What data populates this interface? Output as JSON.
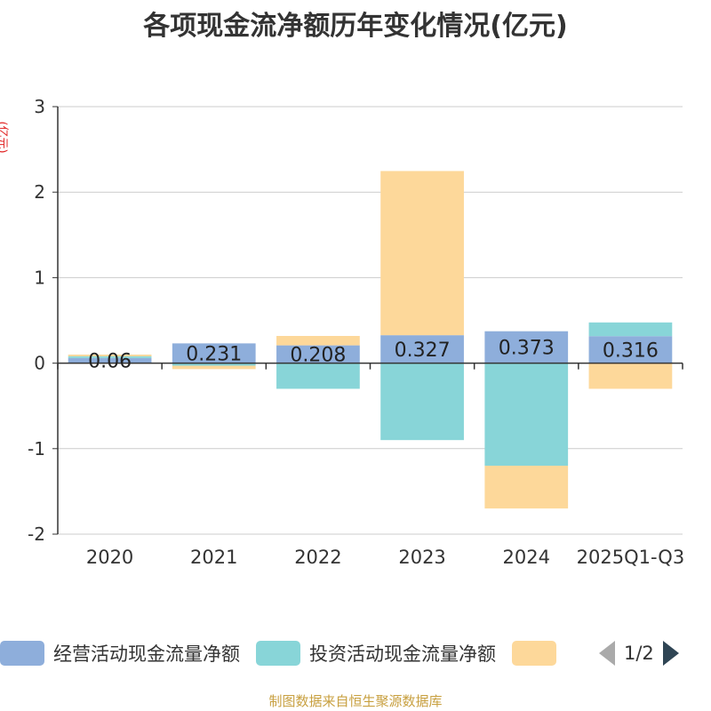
{
  "chart_data": {
    "type": "bar",
    "stacked": true,
    "title": "各项现金流净额历年变化情况(亿元)",
    "ylabel": "(亿元)",
    "ylim": [
      -2,
      3
    ],
    "yticks": [
      -2,
      -1,
      0,
      1,
      2,
      3
    ],
    "grid": true,
    "categories": [
      "2020",
      "2021",
      "2022",
      "2023",
      "2024",
      "2025Q1-Q3"
    ],
    "series": [
      {
        "name": "经营活动现金流量净额",
        "color": "#8eaedb",
        "values": [
          0.06,
          0.231,
          0.208,
          0.327,
          0.373,
          0.316
        ]
      },
      {
        "name": "投资活动现金流量净额",
        "color": "#88d5d8",
        "values": [
          0.02,
          -0.03,
          -0.3,
          -0.9,
          -1.2,
          0.16
        ]
      },
      {
        "name": "",
        "color": "#fdd89a",
        "values": [
          0.02,
          -0.04,
          0.11,
          1.92,
          -0.5,
          -0.3
        ]
      }
    ],
    "data_labels": [
      "0.06",
      "0.231",
      "0.208",
      "0.327",
      "0.373",
      "0.316"
    ]
  },
  "legend": {
    "items": [
      {
        "label": "经营活动现金流量净额",
        "color": "#8eaedb"
      },
      {
        "label": "投资活动现金流量净额",
        "color": "#88d5d8"
      },
      {
        "label": "",
        "color": "#fdd89a"
      }
    ],
    "page": "1/2"
  },
  "source": "制图数据来自恒生聚源数据库"
}
